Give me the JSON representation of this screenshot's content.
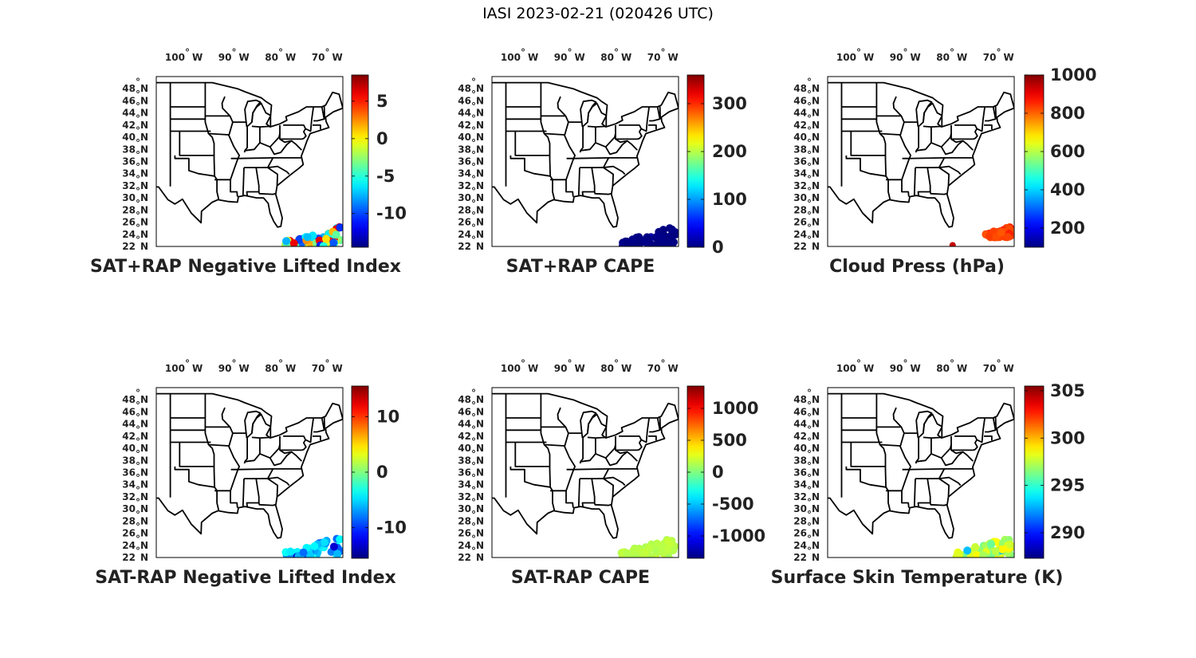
{
  "figure": {
    "title": "IASI 2023-02-21 (020426 UTC)"
  },
  "map": {
    "lon_labels": [
      {
        "deg": "100",
        "hem": "W",
        "lon": -100
      },
      {
        "deg": "90",
        "hem": "W",
        "lon": -90
      },
      {
        "deg": "80",
        "hem": "W",
        "lon": -80
      },
      {
        "deg": "70",
        "hem": "W",
        "lon": -70
      }
    ],
    "lat_labels": [
      {
        "deg": "48",
        "hem": "N",
        "lat": 48
      },
      {
        "deg": "46",
        "hem": "N",
        "lat": 46
      },
      {
        "deg": "44",
        "hem": "N",
        "lat": 44
      },
      {
        "deg": "42",
        "hem": "N",
        "lat": 42
      },
      {
        "deg": "40",
        "hem": "N",
        "lat": 40
      },
      {
        "deg": "38",
        "hem": "N",
        "lat": 38
      },
      {
        "deg": "36",
        "hem": "N",
        "lat": 36
      },
      {
        "deg": "34",
        "hem": "N",
        "lat": 34
      },
      {
        "deg": "32",
        "hem": "N",
        "lat": 32
      },
      {
        "deg": "30",
        "hem": "N",
        "lat": 30
      },
      {
        "deg": "28",
        "hem": "N",
        "lat": 28
      },
      {
        "deg": "26",
        "hem": "N",
        "lat": 26
      },
      {
        "deg": "24",
        "hem": "N",
        "lat": 24
      },
      {
        "deg": "22",
        "hem": "N",
        "lat": 22
      }
    ],
    "lon_range": [
      -107,
      -67
    ],
    "lat_range": [
      22,
      50
    ],
    "colormap": "jet"
  },
  "panels": [
    {
      "id": "sat-rap-plus-nli",
      "title": "SAT+RAP Negative Lifted Index",
      "colorbar": {
        "min": -14.5,
        "max": 8.5,
        "ticks": [
          5,
          0,
          -5,
          -10
        ],
        "tick_labels": [
          "5",
          "0",
          "-5",
          "-10"
        ]
      },
      "swath": {
        "lat_range": [
          22.0,
          25.4
        ],
        "lon_range": [
          -79.5,
          -67.5
        ],
        "value_dominant": -4,
        "value_spread": 7,
        "value_hot": 6
      }
    },
    {
      "id": "sat-rap-plus-cape",
      "title": "SAT+RAP CAPE",
      "colorbar": {
        "min": 0,
        "max": 360,
        "ticks": [
          300,
          200,
          100,
          0
        ],
        "tick_labels": [
          "300",
          "200",
          "100",
          "0"
        ]
      },
      "swath": {
        "lat_range": [
          22.0,
          25.4
        ],
        "lon_range": [
          -79.0,
          -67.5
        ],
        "value_dominant": 0,
        "value_spread": 4,
        "value_hot": 15
      }
    },
    {
      "id": "cloud-press",
      "title": "Cloud Press (hPa)",
      "colorbar": {
        "min": 100,
        "max": 1000,
        "ticks": [
          1000,
          800,
          600,
          400,
          200
        ],
        "tick_labels": [
          "1000",
          "800",
          "600",
          "400",
          "200"
        ]
      },
      "swath": {
        "lat_range": [
          23.5,
          25.4
        ],
        "lon_range": [
          -73.5,
          -67.5
        ],
        "value_dominant": 830,
        "value_spread": 20,
        "value_hot": 860,
        "outlier": {
          "lon": -80.2,
          "lat": 22.2,
          "value": 940
        }
      }
    },
    {
      "id": "sat-rap-minus-nli",
      "title": "SAT-RAP Negative Lifted Index",
      "colorbar": {
        "min": -15.5,
        "max": 15.5,
        "ticks": [
          10,
          0,
          -10
        ],
        "tick_labels": [
          "10",
          "0",
          "-10"
        ]
      },
      "swath": {
        "lat_range": [
          22.0,
          25.4
        ],
        "lon_range": [
          -79.5,
          -67.5
        ],
        "value_dominant": -6,
        "value_spread": 3,
        "value_hot": -13
      }
    },
    {
      "id": "sat-rap-minus-cape",
      "title": "SAT-RAP CAPE",
      "colorbar": {
        "min": -1350,
        "max": 1350,
        "ticks": [
          1000,
          500,
          0,
          -500,
          -1000
        ],
        "tick_labels": [
          "1000",
          "500",
          "0",
          "-500",
          "-1000"
        ]
      },
      "swath": {
        "lat_range": [
          22.0,
          25.4
        ],
        "lon_range": [
          -79.5,
          -67.5
        ],
        "value_dominant": 150,
        "value_spread": 40,
        "value_hot": 150
      }
    },
    {
      "id": "surface-skin-temp",
      "title": "Surface Skin Temperature (K)",
      "colorbar": {
        "min": 287.3,
        "max": 305.5,
        "ticks": [
          305,
          300,
          295,
          290
        ],
        "tick_labels": [
          "305",
          "300",
          "295",
          "290"
        ]
      },
      "swath": {
        "lat_range": [
          22.0,
          25.4
        ],
        "lon_range": [
          -79.5,
          -67.5
        ],
        "value_dominant": 297.5,
        "value_spread": 1.5,
        "value_hot": 293
      }
    }
  ]
}
